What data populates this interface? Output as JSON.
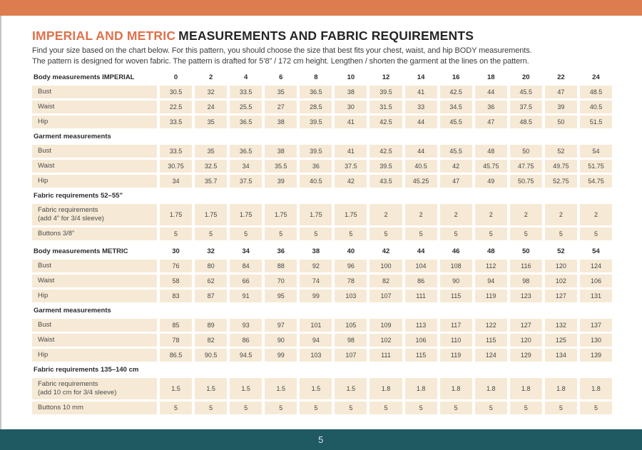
{
  "colors": {
    "accent": "#dd7c4e",
    "teal": "#1f5a63",
    "beige": "#f6ead6"
  },
  "header": {
    "title_accent": "IMPERIAL AND METRIC",
    "title_rest": "MEASUREMENTS AND FABRIC REQUIREMENTS",
    "intro_line1": "Find your size based on the chart below. For this pattern, you should choose the size that best fits your chest, waist, and hip BODY measurements.",
    "intro_line2": "The pattern is designed for woven fabric. The pattern is drafted for 5’8” / 172 cm height. Lengthen / shorten the garment at the lines on the pattern."
  },
  "footer": {
    "page_number": "5"
  },
  "table": {
    "blocks": [
      {
        "kind": "sizes",
        "label": "Body measurements IMPERIAL",
        "sizes": [
          "0",
          "2",
          "4",
          "6",
          "8",
          "10",
          "12",
          "14",
          "16",
          "18",
          "20",
          "22",
          "24"
        ]
      },
      {
        "kind": "row",
        "label": "Bust",
        "values": [
          "30.5",
          "32",
          "33.5",
          "35",
          "36.5",
          "38",
          "39.5",
          "41",
          "42.5",
          "44",
          "45.5",
          "47",
          "48.5"
        ]
      },
      {
        "kind": "row",
        "label": "Waist",
        "values": [
          "22.5",
          "24",
          "25.5",
          "27",
          "28.5",
          "30",
          "31.5",
          "33",
          "34.5",
          "36",
          "37.5",
          "39",
          "40.5"
        ]
      },
      {
        "kind": "row",
        "label": "Hip",
        "values": [
          "33.5",
          "35",
          "36.5",
          "38",
          "39.5",
          "41",
          "42.5",
          "44",
          "45.5",
          "47",
          "48.5",
          "50",
          "51.5"
        ]
      },
      {
        "kind": "heading",
        "label": "Garment measurements"
      },
      {
        "kind": "row",
        "label": "Bust",
        "values": [
          "33.5",
          "35",
          "36.5",
          "38",
          "39.5",
          "41",
          "42.5",
          "44",
          "45.5",
          "48",
          "50",
          "52",
          "54"
        ]
      },
      {
        "kind": "row",
        "label": "Waist",
        "values": [
          "30.75",
          "32.5",
          "34",
          "35.5",
          "36",
          "37.5",
          "39.5",
          "40.5",
          "42",
          "45.75",
          "47.75",
          "49.75",
          "51.75"
        ]
      },
      {
        "kind": "row",
        "label": "Hip",
        "values": [
          "34",
          "35.7",
          "37.5",
          "39",
          "40.5",
          "42",
          "43.5",
          "45.25",
          "47",
          "49",
          "50.75",
          "52.75",
          "54.75"
        ]
      },
      {
        "kind": "heading",
        "label": "Fabric requirements 52–55”"
      },
      {
        "kind": "row2",
        "label": "Fabric requirements",
        "label2": "(add 4” for 3/4 sleeve)",
        "values": [
          "1.75",
          "1.75",
          "1.75",
          "1.75",
          "1.75",
          "1.75",
          "2",
          "2",
          "2",
          "2",
          "2",
          "2",
          "2"
        ]
      },
      {
        "kind": "row",
        "label": "Buttons 3/8”",
        "values": [
          "5",
          "5",
          "5",
          "5",
          "5",
          "5",
          "5",
          "5",
          "5",
          "5",
          "5",
          "5",
          "5"
        ]
      },
      {
        "kind": "sizes",
        "gap_above": true,
        "label": "Body measurements METRIC",
        "sizes": [
          "30",
          "32",
          "34",
          "36",
          "38",
          "40",
          "42",
          "44",
          "46",
          "48",
          "50",
          "52",
          "54"
        ]
      },
      {
        "kind": "row",
        "label": "Bust",
        "values": [
          "76",
          "80",
          "84",
          "88",
          "92",
          "96",
          "100",
          "104",
          "108",
          "112",
          "116",
          "120",
          "124"
        ]
      },
      {
        "kind": "row",
        "label": "Waist",
        "values": [
          "58",
          "62",
          "66",
          "70",
          "74",
          "78",
          "82",
          "86",
          "90",
          "94",
          "98",
          "102",
          "106"
        ]
      },
      {
        "kind": "row",
        "label": "Hip",
        "values": [
          "83",
          "87",
          "91",
          "95",
          "99",
          "103",
          "107",
          "111",
          "115",
          "119",
          "123",
          "127",
          "131"
        ]
      },
      {
        "kind": "heading",
        "label": "Garment measurements"
      },
      {
        "kind": "row",
        "label": "Bust",
        "values": [
          "85",
          "89",
          "93",
          "97",
          "101",
          "105",
          "109",
          "113",
          "117",
          "122",
          "127",
          "132",
          "137"
        ]
      },
      {
        "kind": "row",
        "label": "Waist",
        "values": [
          "78",
          "82",
          "86",
          "90",
          "94",
          "98",
          "102",
          "106",
          "110",
          "115",
          "120",
          "125",
          "130"
        ]
      },
      {
        "kind": "row",
        "label": "Hip",
        "values": [
          "86.5",
          "90.5",
          "94.5",
          "99",
          "103",
          "107",
          "111",
          "115",
          "119",
          "124",
          "129",
          "134",
          "139"
        ]
      },
      {
        "kind": "heading",
        "label": "Fabric requirements 135–140 cm"
      },
      {
        "kind": "row2",
        "label": "Fabric requirements",
        "label2": "(add 10 cm for 3/4 sleeve)",
        "values": [
          "1.5",
          "1.5",
          "1.5",
          "1.5",
          "1.5",
          "1.5",
          "1.8",
          "1.8",
          "1.8",
          "1.8",
          "1.8",
          "1.8",
          "1.8"
        ]
      },
      {
        "kind": "row",
        "label": "Buttons 10 mm",
        "values": [
          "5",
          "5",
          "5",
          "5",
          "5",
          "5",
          "5",
          "5",
          "5",
          "5",
          "5",
          "5",
          "5"
        ]
      }
    ]
  }
}
